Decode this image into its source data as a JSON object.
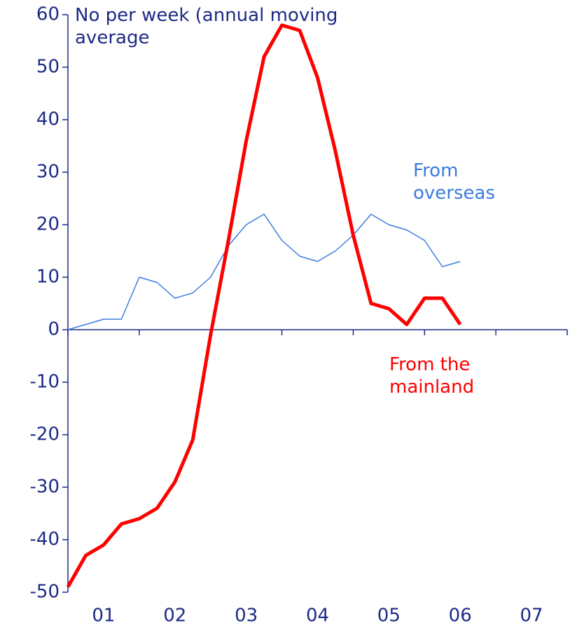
{
  "chart_data": {
    "type": "line",
    "ylabel": "No per week (annual moving average",
    "x": [
      1,
      1.25,
      1.5,
      1.75,
      2,
      2.25,
      2.5,
      2.75,
      3,
      3.25,
      3.5,
      3.75,
      4,
      4.25,
      4.5,
      4.75,
      5,
      5.25,
      5.5,
      5.75,
      6,
      6.25,
      6.5
    ],
    "series": [
      {
        "name": "From overseas",
        "color": "#3b7be0",
        "width": 1.5,
        "values": [
          0,
          1,
          2,
          2,
          10,
          9,
          6,
          7,
          10,
          16,
          20,
          22,
          17,
          14,
          13,
          15,
          18,
          22,
          20,
          19,
          17,
          12,
          13
        ]
      },
      {
        "name": "From the mainland",
        "color": "#ff0000",
        "width": 5,
        "values": [
          -49,
          -43,
          -41,
          -37,
          -36,
          -34,
          -29,
          -21,
          -1,
          17,
          36,
          52,
          58,
          57,
          48,
          34,
          18,
          5,
          4,
          1,
          6,
          6,
          1
        ]
      }
    ],
    "xlim": [
      1,
      8
    ],
    "xtick_marks": [
      1,
      2,
      3,
      4,
      5,
      6,
      7,
      8
    ],
    "xticks": [
      {
        "value": 1.5,
        "label": "01"
      },
      {
        "value": 2.5,
        "label": "02"
      },
      {
        "value": 3.5,
        "label": "03"
      },
      {
        "value": 4.5,
        "label": "04"
      },
      {
        "value": 5.5,
        "label": "05"
      },
      {
        "value": 6.5,
        "label": "06"
      },
      {
        "value": 7.5,
        "label": "07"
      }
    ],
    "ylim": [
      -50,
      60
    ],
    "yticks": [
      -50,
      -40,
      -30,
      -20,
      -10,
      0,
      10,
      20,
      30,
      40,
      50,
      60
    ],
    "grid": false
  }
}
